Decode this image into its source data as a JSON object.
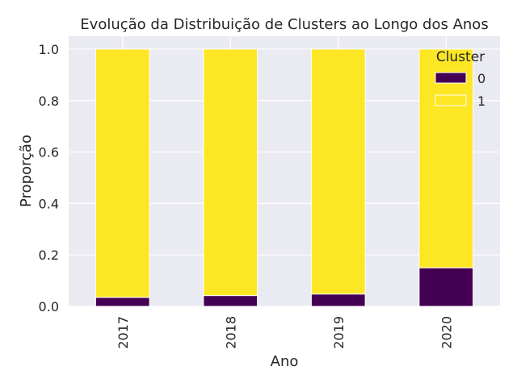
{
  "chart_data": {
    "type": "bar",
    "stacked": true,
    "title": "Evolução da Distribuição de Clusters ao Longo dos Anos",
    "xlabel": "Ano",
    "ylabel": "Proporção",
    "categories": [
      "2017",
      "2018",
      "2019",
      "2020"
    ],
    "series": [
      {
        "name": "0",
        "values": [
          0.035,
          0.042,
          0.048,
          0.15
        ],
        "color": "#440154"
      },
      {
        "name": "1",
        "values": [
          0.965,
          0.958,
          0.952,
          0.85
        ],
        "color": "#fde725"
      }
    ],
    "ylim": [
      0,
      1.05
    ],
    "yticks": [
      "0.0",
      "0.2",
      "0.4",
      "0.6",
      "0.8",
      "1.0"
    ],
    "grid": true,
    "legend": {
      "title": "Cluster",
      "position": "top-right"
    },
    "background": "#eaeaf2"
  }
}
